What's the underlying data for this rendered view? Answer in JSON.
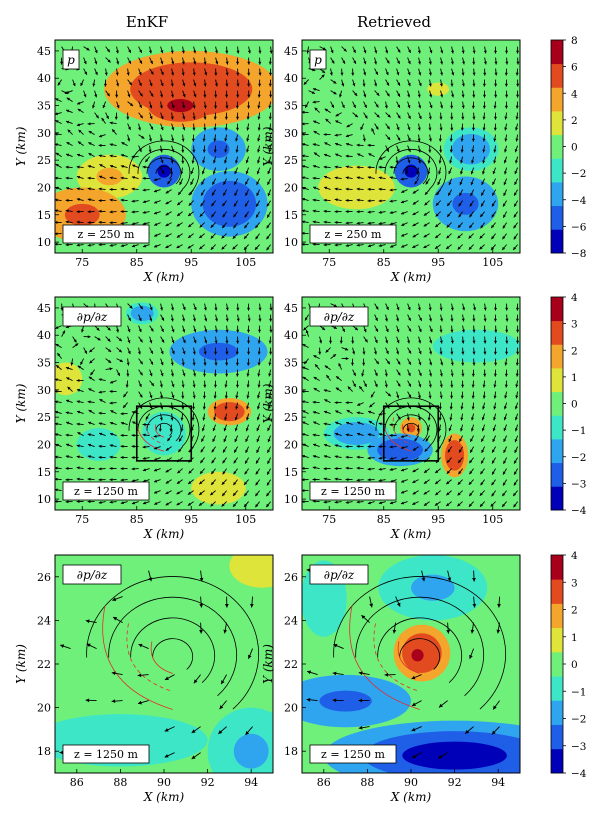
{
  "column_titles": [
    "EnKF",
    "Retrieved"
  ],
  "chart_data": [
    {
      "type": "heatmap",
      "id": "row1-enkf",
      "column": "EnKF",
      "variable_label": "p",
      "level_label": "z = 250 m",
      "xlabel": "X (km)",
      "ylabel": "Y (km)",
      "xlim": [
        70,
        110
      ],
      "ylim": [
        8,
        47
      ],
      "xticks": [
        75,
        85,
        95,
        105
      ],
      "yticks": [
        10,
        15,
        20,
        25,
        30,
        35,
        40,
        45
      ],
      "blobs": [
        {
          "x": 95,
          "y": 38,
          "rx": 16,
          "ry": 7,
          "value": 5.5
        },
        {
          "x": 93,
          "y": 35,
          "rx": 6,
          "ry": 3,
          "value": 7
        },
        {
          "x": 75,
          "y": 15,
          "rx": 8,
          "ry": 5,
          "value": 5
        },
        {
          "x": 80,
          "y": 22,
          "rx": 6,
          "ry": 4,
          "value": 3
        },
        {
          "x": 90,
          "y": 23,
          "rx": 3,
          "ry": 3,
          "value": -7
        },
        {
          "x": 102,
          "y": 17,
          "rx": 7,
          "ry": 6,
          "value": -6
        },
        {
          "x": 100,
          "y": 27,
          "rx": 5,
          "ry": 4,
          "value": -4.5
        }
      ],
      "inset_box": null
    },
    {
      "type": "heatmap",
      "id": "row1-retrieved",
      "column": "Retrieved",
      "variable_label": "p",
      "level_label": "z = 250 m",
      "xlabel": "X (km)",
      "ylabel": "Y (km)",
      "xlim": [
        70,
        110
      ],
      "ylim": [
        8,
        47
      ],
      "xticks": [
        75,
        85,
        95,
        105
      ],
      "yticks": [
        10,
        15,
        20,
        25,
        30,
        35,
        40,
        45
      ],
      "blobs": [
        {
          "x": 90,
          "y": 23,
          "rx": 3,
          "ry": 3,
          "value": -7
        },
        {
          "x": 100,
          "y": 17,
          "rx": 6,
          "ry": 5,
          "value": -5
        },
        {
          "x": 101,
          "y": 27,
          "rx": 5,
          "ry": 4,
          "value": -4
        },
        {
          "x": 80,
          "y": 20,
          "rx": 7,
          "ry": 4,
          "value": 2.5
        },
        {
          "x": 95,
          "y": 38,
          "rx": 5,
          "ry": 3,
          "value": 1
        }
      ],
      "inset_box": null
    },
    {
      "type": "heatmap",
      "id": "row2-enkf",
      "column": "EnKF",
      "variable_label": "∂p/∂z",
      "level_label": "z = 1250 m",
      "xlabel": "X (km)",
      "ylabel": "Y (km)",
      "xlim": [
        70,
        110
      ],
      "ylim": [
        8,
        47
      ],
      "xticks": [
        75,
        85,
        95,
        105
      ],
      "yticks": [
        10,
        15,
        20,
        25,
        30,
        35,
        40,
        45
      ],
      "blobs": [
        {
          "x": 100,
          "y": 37,
          "rx": 9,
          "ry": 4,
          "value": -2.5
        },
        {
          "x": 86,
          "y": 44,
          "rx": 3,
          "ry": 2,
          "value": -2
        },
        {
          "x": 90,
          "y": 22,
          "rx": 4,
          "ry": 4,
          "value": -1.2
        },
        {
          "x": 78,
          "y": 20,
          "rx": 4,
          "ry": 3,
          "value": -1
        },
        {
          "x": 102,
          "y": 26,
          "rx": 4,
          "ry": 2.5,
          "value": 3
        },
        {
          "x": 72,
          "y": 32,
          "rx": 3,
          "ry": 3,
          "value": 1
        },
        {
          "x": 100,
          "y": 12,
          "rx": 5,
          "ry": 3,
          "value": 1
        }
      ],
      "inset_box": {
        "x0": 85,
        "x1": 95,
        "y0": 17,
        "y1": 27
      }
    },
    {
      "type": "heatmap",
      "id": "row2-retrieved",
      "column": "Retrieved",
      "variable_label": "∂p/∂z",
      "level_label": "z = 1250 m",
      "xlabel": "X (km)",
      "ylabel": "Y (km)",
      "xlim": [
        70,
        110
      ],
      "ylim": [
        8,
        47
      ],
      "xticks": [
        75,
        85,
        95,
        105
      ],
      "yticks": [
        10,
        15,
        20,
        25,
        30,
        35,
        40,
        45
      ],
      "blobs": [
        {
          "x": 88,
          "y": 19,
          "rx": 6,
          "ry": 3,
          "value": -2.8
        },
        {
          "x": 80,
          "y": 22,
          "rx": 6,
          "ry": 3,
          "value": -2
        },
        {
          "x": 102,
          "y": 38,
          "rx": 8,
          "ry": 3,
          "value": -1
        },
        {
          "x": 98,
          "y": 18,
          "rx": 2.5,
          "ry": 4,
          "value": 3
        },
        {
          "x": 90,
          "y": 23,
          "rx": 2,
          "ry": 2,
          "value": 2.5
        }
      ],
      "inset_box": {
        "x0": 85,
        "x1": 95,
        "y0": 17,
        "y1": 27
      }
    },
    {
      "type": "heatmap",
      "id": "row3-enkf",
      "column": "EnKF",
      "variable_label": "∂p/∂z",
      "level_label": "z = 1250 m",
      "xlabel": "X (km)",
      "ylabel": "Y (km)",
      "xlim": [
        85,
        95
      ],
      "ylim": [
        17,
        27
      ],
      "xticks": [
        86,
        88,
        90,
        92,
        94
      ],
      "yticks": [
        18,
        20,
        22,
        24,
        26
      ],
      "blobs": [
        {
          "x": 88,
          "y": 18.5,
          "rx": 4,
          "ry": 1.2,
          "value": -1.3
        },
        {
          "x": 94,
          "y": 18,
          "rx": 2,
          "ry": 2,
          "value": -1.5
        },
        {
          "x": 94.5,
          "y": 26.5,
          "rx": 1.5,
          "ry": 1,
          "value": 1
        },
        {
          "x": 88.5,
          "y": 23,
          "rx": 1.5,
          "ry": 2.5,
          "value": 0.3
        }
      ],
      "inset_box": null
    },
    {
      "type": "heatmap",
      "id": "row3-retrieved",
      "column": "Retrieved",
      "variable_label": "∂p/∂z",
      "level_label": "z = 1250 m",
      "xlabel": "X (km)",
      "ylabel": "Y (km)",
      "xlim": [
        85,
        95
      ],
      "ylim": [
        17,
        27
      ],
      "xticks": [
        86,
        88,
        90,
        92,
        94
      ],
      "yticks": [
        18,
        20,
        22,
        24,
        26
      ],
      "blobs": [
        {
          "x": 92,
          "y": 17.8,
          "rx": 6,
          "ry": 1.6,
          "value": -3.2
        },
        {
          "x": 87,
          "y": 20.3,
          "rx": 3,
          "ry": 1.2,
          "value": -2.5
        },
        {
          "x": 91,
          "y": 25.5,
          "rx": 2.5,
          "ry": 1.5,
          "value": -1.5
        },
        {
          "x": 86,
          "y": 25,
          "rx": 1.5,
          "ry": 2.5,
          "value": -0.6
        },
        {
          "x": 90.5,
          "y": 22.5,
          "rx": 1.3,
          "ry": 1.3,
          "value": 2.8
        },
        {
          "x": 90.3,
          "y": 22.4,
          "rx": 0.4,
          "ry": 0.4,
          "value": 3.8
        }
      ],
      "inset_box": null
    }
  ],
  "colorbars": [
    {
      "id": "cb1",
      "min": -8,
      "max": 8,
      "ticks": [
        "8",
        "6",
        "4",
        "2",
        "0",
        "−2",
        "−4",
        "−6",
        "−8"
      ]
    },
    {
      "id": "cb2",
      "min": -4,
      "max": 4,
      "ticks": [
        "4",
        "3",
        "2",
        "1",
        "0",
        "−1",
        "−2",
        "−3",
        "−4"
      ]
    },
    {
      "id": "cb3",
      "min": -4,
      "max": 4,
      "ticks": [
        "4",
        "3",
        "2",
        "1",
        "0",
        "−1",
        "−2",
        "−3",
        "−4"
      ]
    }
  ],
  "colors": {
    "scale": [
      "#0000b8",
      "#1f5ee6",
      "#2fa4ef",
      "#3ee6c8",
      "#6ff07a",
      "#dfe43a",
      "#f4a52b",
      "#e24a1f",
      "#a8001a"
    ],
    "vector": "#000000",
    "contour_black": "#000000",
    "contour_red": "#e03030"
  }
}
